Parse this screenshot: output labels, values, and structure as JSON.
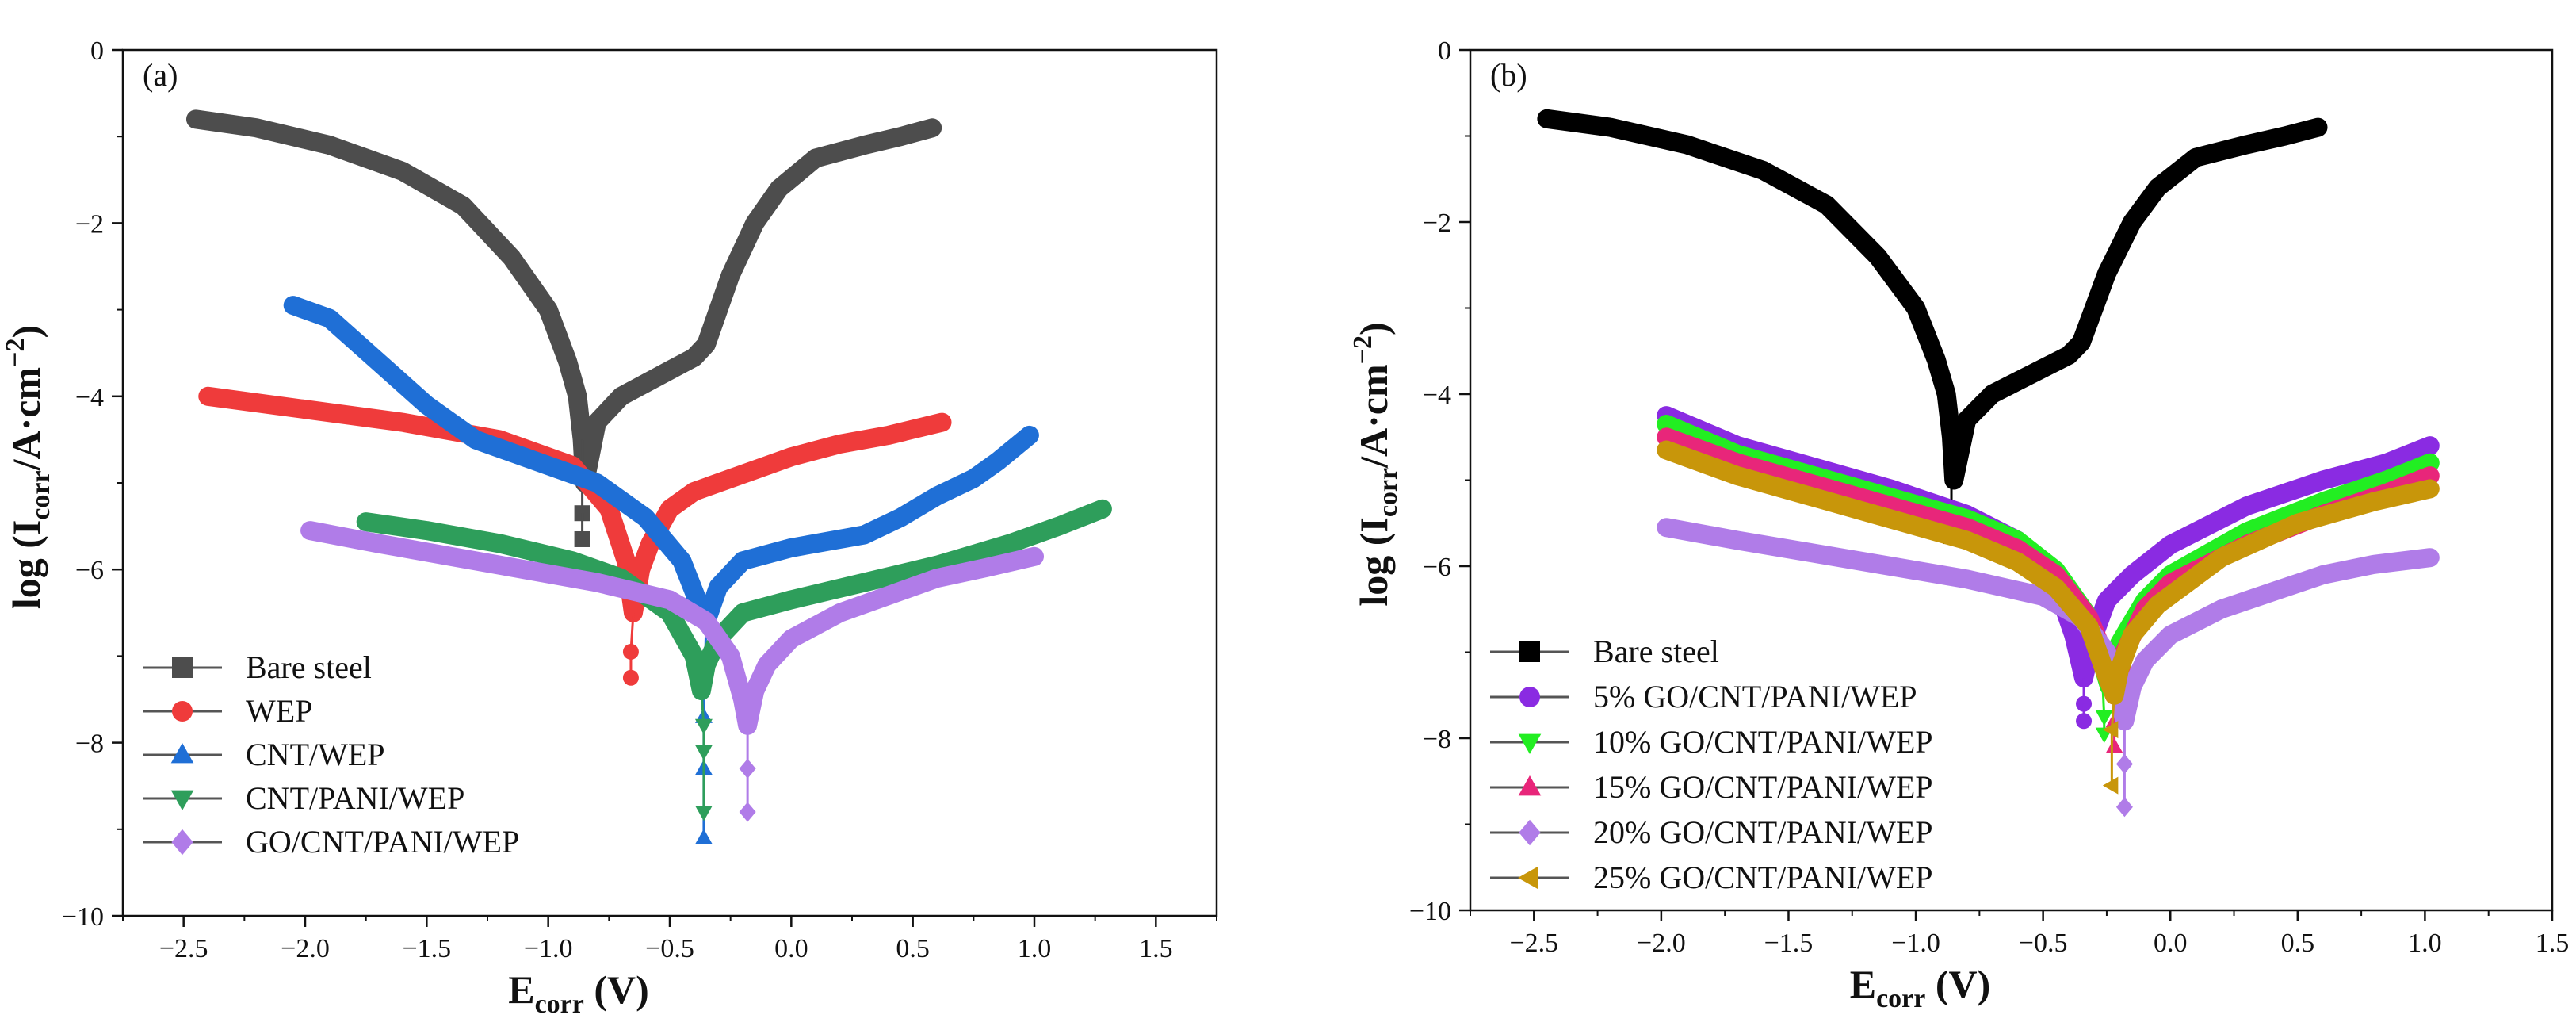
{
  "chart_data": [
    {
      "type": "line",
      "panel": "(a)",
      "xlabel_main": "E",
      "xlabel_sub": "corr",
      "xlabel_unit": " (V)",
      "ylabel_main": "log (I",
      "ylabel_sub": "corr",
      "ylabel_unit": "/A·cm",
      "ylabel_sup": "−2",
      "ylabel_close": ")",
      "xlim": [
        -2.75,
        1.75
      ],
      "ylim": [
        -10,
        0
      ],
      "xticks": [
        -2.5,
        -2.0,
        -1.5,
        -1.0,
        -0.5,
        0.0,
        0.5,
        1.0,
        1.5
      ],
      "xtick_labels": [
        "−2.5",
        "−2.0",
        "−1.5",
        "−1.0",
        "−0.5",
        "0.0",
        "0.5",
        "1.0",
        "1.5"
      ],
      "yticks": [
        0,
        -2,
        -4,
        -6,
        -8,
        -10
      ],
      "ytick_labels": [
        "0",
        "−2",
        "−4",
        "−6",
        "−8",
        "−10"
      ],
      "legend_position": "bottom-left",
      "series": [
        {
          "name": "Bare steel",
          "color": "#4d4d4d",
          "marker": "square",
          "x": [
            -2.45,
            -2.2,
            -1.9,
            -1.6,
            -1.35,
            -1.15,
            -1.0,
            -0.92,
            -0.88,
            -0.86,
            -0.85,
            -0.8,
            -0.7,
            -0.6,
            -0.5,
            -0.4,
            -0.35,
            -0.3,
            -0.25,
            -0.15,
            -0.05,
            0.1,
            0.3,
            0.45,
            0.58
          ],
          "y": [
            -0.8,
            -0.9,
            -1.1,
            -1.4,
            -1.8,
            -2.4,
            -3.0,
            -3.6,
            -4.0,
            -4.5,
            -5.0,
            -4.3,
            -4.0,
            -3.85,
            -3.7,
            -3.55,
            -3.4,
            -3.0,
            -2.6,
            -2.0,
            -1.6,
            -1.25,
            -1.1,
            -1.0,
            -0.9
          ],
          "tail_points": [
            [
              -0.86,
              -5.35
            ],
            [
              -0.86,
              -5.65
            ]
          ]
        },
        {
          "name": "WEP",
          "color": "#ef3b3b",
          "marker": "circle",
          "x": [
            -2.4,
            -2.0,
            -1.6,
            -1.2,
            -0.9,
            -0.75,
            -0.68,
            -0.65,
            -0.62,
            -0.58,
            -0.5,
            -0.4,
            -0.2,
            0.0,
            0.2,
            0.4,
            0.62
          ],
          "y": [
            -4.0,
            -4.15,
            -4.3,
            -4.5,
            -4.8,
            -5.3,
            -5.9,
            -6.5,
            -6.0,
            -5.7,
            -5.3,
            -5.1,
            -4.9,
            -4.7,
            -4.55,
            -4.45,
            -4.3
          ],
          "tail_points": [
            [
              -0.66,
              -6.95
            ],
            [
              -0.66,
              -7.25
            ]
          ]
        },
        {
          "name": "CNT/WEP",
          "color": "#1f6fd6",
          "marker": "triangle-up",
          "x": [
            -2.05,
            -1.9,
            -1.7,
            -1.5,
            -1.3,
            -1.0,
            -0.8,
            -0.6,
            -0.45,
            -0.38,
            -0.35,
            -0.3,
            -0.2,
            0.0,
            0.3,
            0.45,
            0.6,
            0.75,
            0.85,
            0.98
          ],
          "y": [
            -2.95,
            -3.1,
            -3.6,
            -4.1,
            -4.5,
            -4.8,
            -5.0,
            -5.4,
            -5.9,
            -6.4,
            -6.6,
            -6.2,
            -5.9,
            -5.75,
            -5.6,
            -5.4,
            -5.15,
            -4.95,
            -4.75,
            -4.45
          ],
          "tail_points": [
            [
              -0.36,
              -7.7
            ],
            [
              -0.36,
              -8.3
            ],
            [
              -0.36,
              -9.1
            ]
          ]
        },
        {
          "name": "CNT/PANI/WEP",
          "color": "#2e9e5b",
          "marker": "triangle-down",
          "x": [
            -1.75,
            -1.5,
            -1.2,
            -0.9,
            -0.7,
            -0.5,
            -0.4,
            -0.37,
            -0.35,
            -0.3,
            -0.2,
            0.0,
            0.3,
            0.6,
            0.9,
            1.1,
            1.28
          ],
          "y": [
            -5.45,
            -5.55,
            -5.7,
            -5.9,
            -6.1,
            -6.5,
            -7.0,
            -7.4,
            -7.1,
            -6.8,
            -6.5,
            -6.35,
            -6.15,
            -5.95,
            -5.7,
            -5.5,
            -5.3
          ],
          "tail_points": [
            [
              -0.36,
              -7.8
            ],
            [
              -0.36,
              -8.1
            ],
            [
              -0.36,
              -8.8
            ]
          ]
        },
        {
          "name": "GO/CNT/PANI/WEP",
          "color": "#b07ce8",
          "marker": "diamond",
          "x": [
            -1.98,
            -1.7,
            -1.4,
            -1.1,
            -0.8,
            -0.5,
            -0.35,
            -0.25,
            -0.2,
            -0.18,
            -0.15,
            -0.1,
            0.0,
            0.2,
            0.4,
            0.6,
            0.8,
            1.0
          ],
          "y": [
            -5.55,
            -5.7,
            -5.85,
            -6.0,
            -6.15,
            -6.35,
            -6.6,
            -7.0,
            -7.5,
            -7.8,
            -7.4,
            -7.1,
            -6.8,
            -6.5,
            -6.3,
            -6.1,
            -5.98,
            -5.85
          ],
          "tail_points": [
            [
              -0.18,
              -8.3
            ],
            [
              -0.18,
              -8.8
            ]
          ]
        }
      ]
    },
    {
      "type": "line",
      "panel": "(b)",
      "xlabel_main": "E",
      "xlabel_sub": "corr",
      "xlabel_unit": " (V)",
      "ylabel_main": "log (I",
      "ylabel_sub": "corr",
      "ylabel_unit": "/A·cm",
      "ylabel_sup": "−2",
      "ylabel_close": ")",
      "xlim": [
        -2.75,
        1.5
      ],
      "ylim": [
        -10,
        0
      ],
      "xticks": [
        -2.5,
        -2.0,
        -1.5,
        -1.0,
        -0.5,
        0.0,
        0.5,
        1.0,
        1.5
      ],
      "xtick_labels": [
        "−2.5",
        "−2.0",
        "−1.5",
        "−1.0",
        "−0.5",
        "0.0",
        "0.5",
        "1.0",
        "1.5"
      ],
      "yticks": [
        0,
        -2,
        -4,
        -6,
        -8,
        -10
      ],
      "ytick_labels": [
        "0",
        "−2",
        "−4",
        "−6",
        "−8",
        "−10"
      ],
      "legend_position": "bottom-left",
      "series": [
        {
          "name": "Bare steel",
          "color": "#000000",
          "marker": "square",
          "x": [
            -2.45,
            -2.2,
            -1.9,
            -1.6,
            -1.35,
            -1.15,
            -1.0,
            -0.92,
            -0.88,
            -0.86,
            -0.85,
            -0.8,
            -0.7,
            -0.6,
            -0.5,
            -0.4,
            -0.35,
            -0.3,
            -0.25,
            -0.15,
            -0.05,
            0.1,
            0.3,
            0.45,
            0.58
          ],
          "y": [
            -0.8,
            -0.9,
            -1.1,
            -1.4,
            -1.8,
            -2.4,
            -3.0,
            -3.6,
            -4.0,
            -4.5,
            -5.0,
            -4.3,
            -4.0,
            -3.85,
            -3.7,
            -3.55,
            -3.4,
            -3.0,
            -2.6,
            -2.0,
            -1.6,
            -1.25,
            -1.1,
            -1.0,
            -0.9
          ],
          "tail_points": [
            [
              -0.86,
              -5.35
            ],
            [
              -0.86,
              -5.65
            ]
          ]
        },
        {
          "name": "5% GO/CNT/PANI/WEP",
          "color": "#8a2be2",
          "marker": "circle",
          "x": [
            -1.98,
            -1.7,
            -1.4,
            -1.1,
            -0.8,
            -0.6,
            -0.45,
            -0.38,
            -0.34,
            -0.3,
            -0.25,
            -0.15,
            0.0,
            0.3,
            0.6,
            0.85,
            1.02
          ],
          "y": [
            -4.25,
            -4.6,
            -4.85,
            -5.1,
            -5.4,
            -5.7,
            -6.2,
            -6.8,
            -7.3,
            -6.8,
            -6.4,
            -6.1,
            -5.75,
            -5.3,
            -5.0,
            -4.8,
            -4.6
          ],
          "tail_points": [
            [
              -0.34,
              -7.6
            ],
            [
              -0.34,
              -7.8
            ]
          ]
        },
        {
          "name": "10% GO/CNT/PANI/WEP",
          "color": "#22ee22",
          "marker": "triangle-down",
          "x": [
            -1.98,
            -1.7,
            -1.4,
            -1.1,
            -0.8,
            -0.6,
            -0.45,
            -0.33,
            -0.27,
            -0.24,
            -0.2,
            -0.1,
            0.0,
            0.3,
            0.6,
            0.85,
            1.02
          ],
          "y": [
            -4.35,
            -4.7,
            -4.95,
            -5.2,
            -5.45,
            -5.7,
            -6.05,
            -6.55,
            -7.1,
            -7.4,
            -6.9,
            -6.4,
            -6.1,
            -5.6,
            -5.25,
            -5.0,
            -4.8
          ],
          "tail_points": [
            [
              -0.26,
              -7.75
            ],
            [
              -0.26,
              -7.95
            ]
          ]
        },
        {
          "name": "15% GO/CNT/PANI/WEP",
          "color": "#e8267a",
          "marker": "triangle-up",
          "x": [
            -1.98,
            -1.7,
            -1.4,
            -1.1,
            -0.8,
            -0.6,
            -0.45,
            -0.32,
            -0.25,
            -0.22,
            -0.18,
            -0.1,
            0.0,
            0.3,
            0.6,
            0.85,
            1.02
          ],
          "y": [
            -4.5,
            -4.8,
            -5.05,
            -5.3,
            -5.55,
            -5.8,
            -6.1,
            -6.6,
            -7.1,
            -7.5,
            -7.0,
            -6.5,
            -6.2,
            -5.75,
            -5.4,
            -5.15,
            -4.95
          ],
          "tail_points": [
            [
              -0.22,
              -7.8
            ],
            [
              -0.22,
              -8.1
            ]
          ]
        },
        {
          "name": "20% GO/CNT/PANI/WEP",
          "color": "#b07ce8",
          "marker": "diamond",
          "x": [
            -1.98,
            -1.7,
            -1.4,
            -1.1,
            -0.8,
            -0.5,
            -0.35,
            -0.25,
            -0.2,
            -0.18,
            -0.15,
            -0.1,
            0.0,
            0.2,
            0.4,
            0.6,
            0.8,
            1.02
          ],
          "y": [
            -5.55,
            -5.7,
            -5.85,
            -6.0,
            -6.15,
            -6.35,
            -6.6,
            -7.0,
            -7.5,
            -7.8,
            -7.4,
            -7.1,
            -6.8,
            -6.5,
            -6.3,
            -6.1,
            -5.98,
            -5.9
          ],
          "tail_points": [
            [
              -0.18,
              -8.3
            ],
            [
              -0.18,
              -8.8
            ]
          ]
        },
        {
          "name": "25% GO/CNT/PANI/WEP",
          "color": "#c8960a",
          "marker": "triangle-left",
          "x": [
            -1.98,
            -1.7,
            -1.4,
            -1.1,
            -0.8,
            -0.6,
            -0.45,
            -0.32,
            -0.26,
            -0.22,
            -0.2,
            -0.15,
            -0.05,
            0.2,
            0.5,
            0.8,
            1.02
          ],
          "y": [
            -4.65,
            -4.95,
            -5.2,
            -5.45,
            -5.7,
            -5.95,
            -6.25,
            -6.7,
            -7.2,
            -7.5,
            -7.2,
            -6.8,
            -6.45,
            -5.9,
            -5.5,
            -5.25,
            -5.1
          ],
          "tail_points": [
            [
              -0.23,
              -7.9
            ],
            [
              -0.23,
              -8.55
            ]
          ]
        }
      ]
    }
  ]
}
